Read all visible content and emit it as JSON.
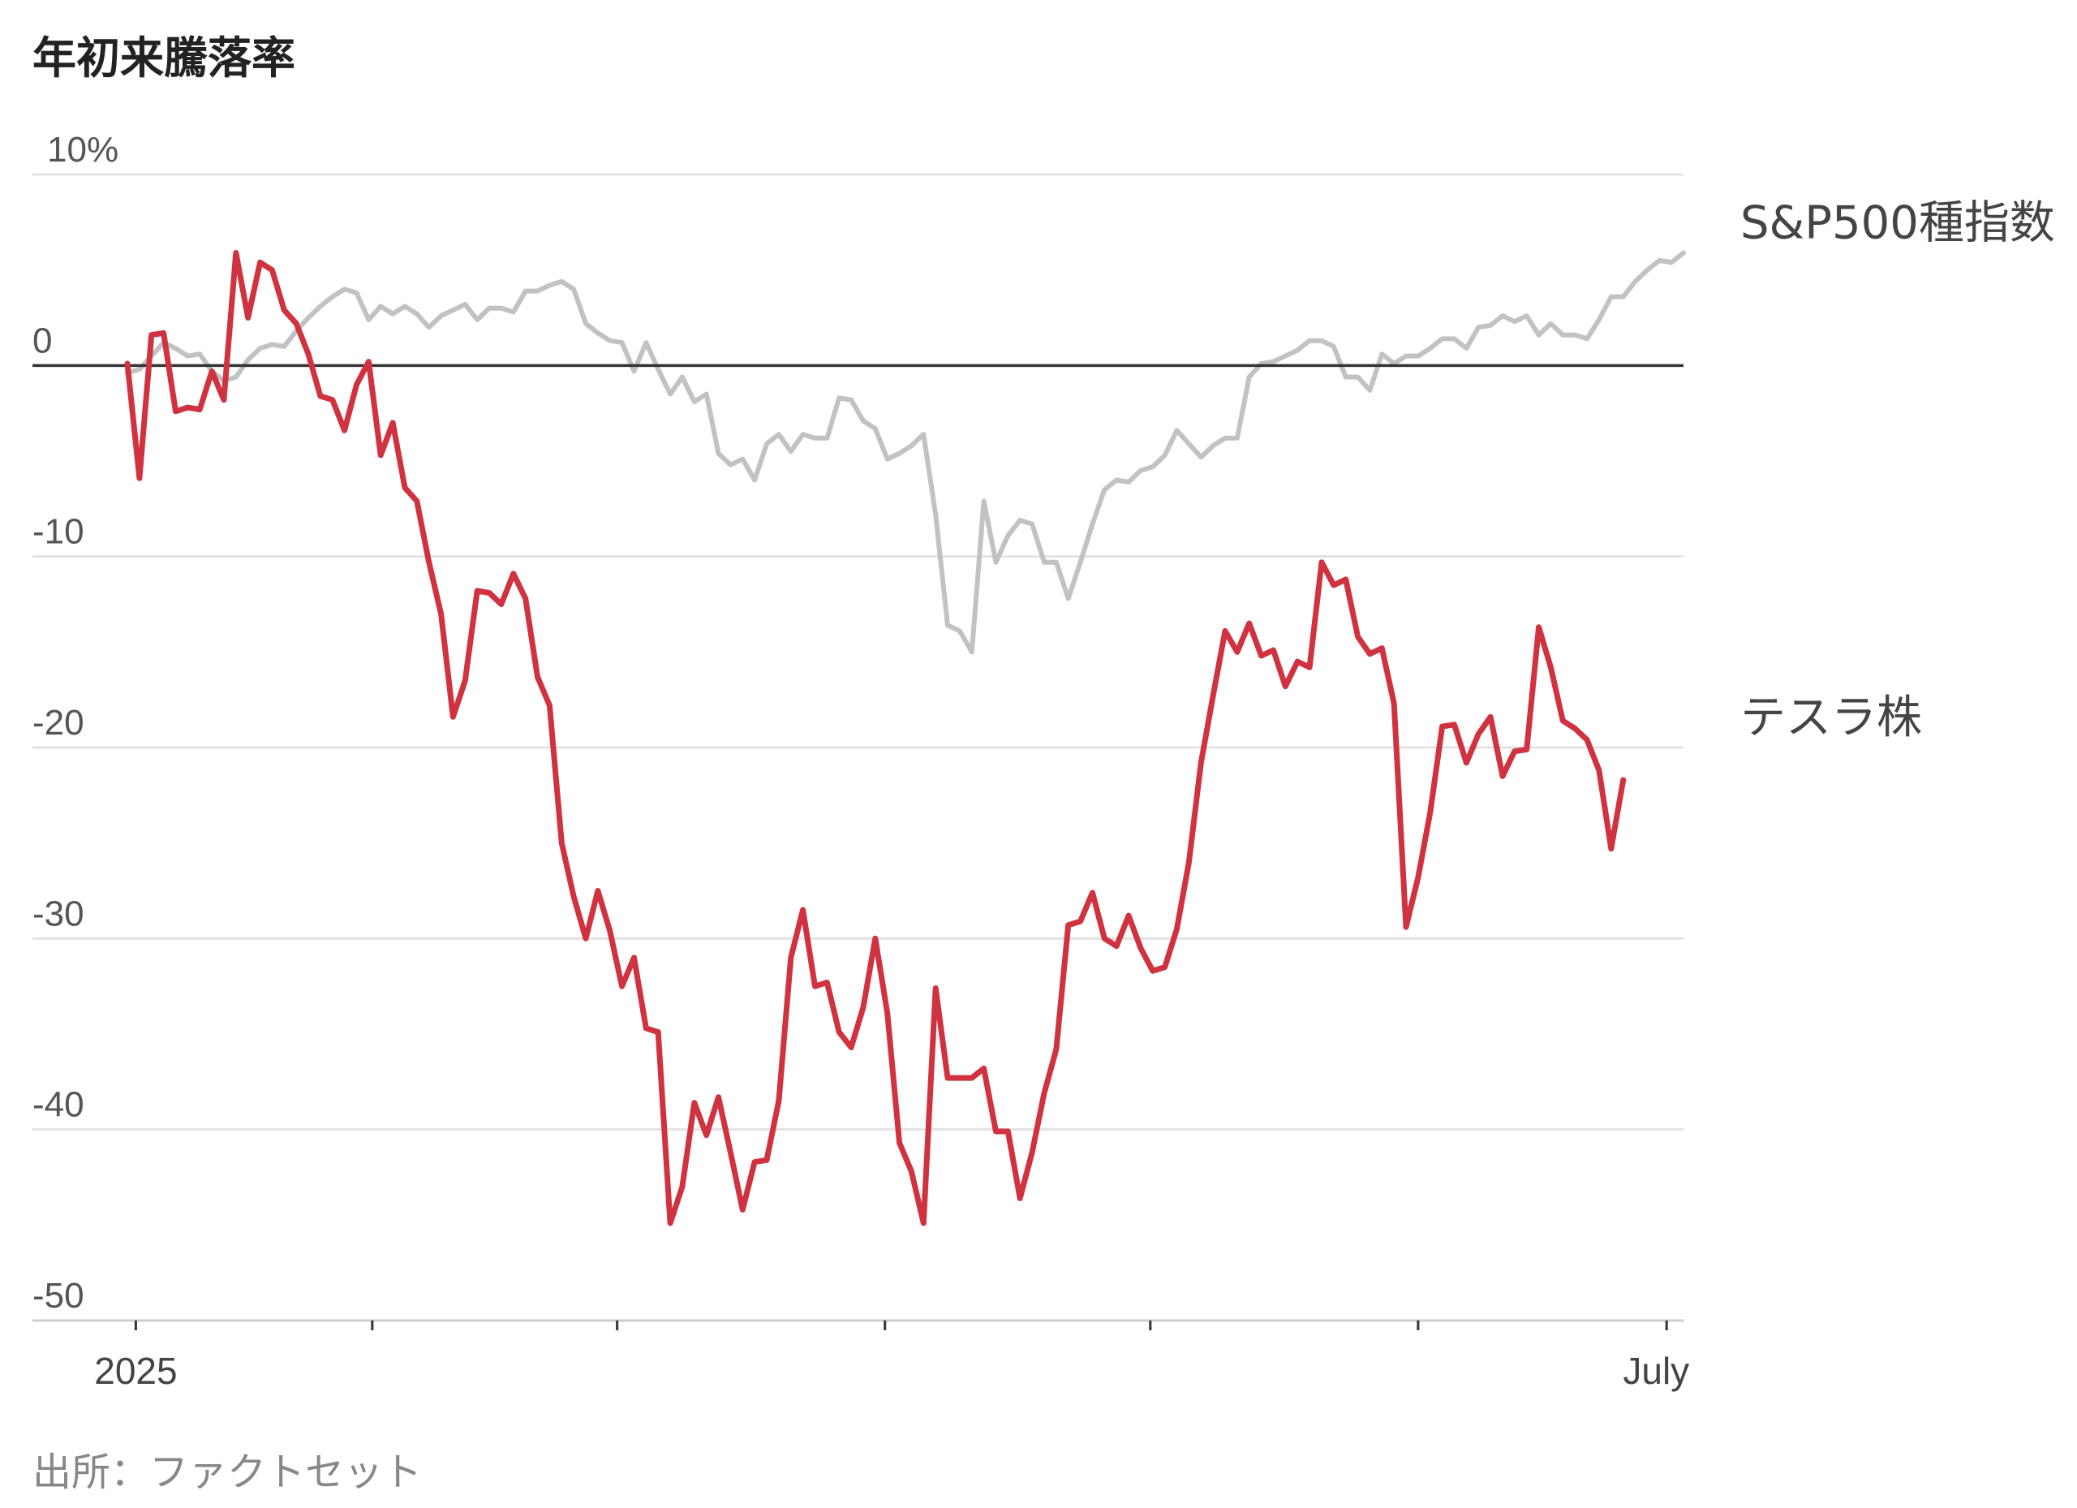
{
  "chart_data": {
    "type": "line",
    "title": "年初来騰落率",
    "source": "出所：ファクトセット",
    "ylim": [
      -50,
      10
    ],
    "yticks": [
      {
        "value": 10,
        "label": "10%"
      },
      {
        "value": 0,
        "label": "0"
      },
      {
        "value": -10,
        "label": "-10"
      },
      {
        "value": -20,
        "label": "-20"
      },
      {
        "value": -30,
        "label": "-30"
      },
      {
        "value": -40,
        "label": "-40"
      },
      {
        "value": -50,
        "label": "-50"
      }
    ],
    "xlim": [
      0,
      129
    ],
    "xticks": [
      {
        "value": 0.7,
        "label": "2025"
      },
      {
        "value": 20.3,
        "label": ""
      },
      {
        "value": 40.6,
        "label": ""
      },
      {
        "value": 62.8,
        "label": ""
      },
      {
        "value": 84.8,
        "label": ""
      },
      {
        "value": 107.0,
        "label": ""
      },
      {
        "value": 127.6,
        "label": "July"
      }
    ],
    "grid": true,
    "zero_line": true,
    "colors": {
      "tesla": "#d0323f",
      "sp500": "#c2c2c2",
      "grid": "#e3e3e3",
      "zero": "#333333",
      "axis": "#cccccc"
    },
    "series": [
      {
        "name": "S&P500種指数",
        "color": "#c2c2c2",
        "values": [
          -0.4,
          -0.2,
          0.5,
          1.2,
          0.9,
          0.5,
          0.6,
          -0.3,
          -0.8,
          -0.6,
          0.3,
          0.9,
          1.1,
          1.0,
          1.8,
          2.5,
          3.1,
          3.6,
          4.0,
          3.8,
          2.4,
          3.1,
          2.7,
          3.1,
          2.7,
          2.0,
          2.6,
          2.9,
          3.2,
          2.4,
          3.0,
          3.0,
          2.8,
          3.9,
          3.9,
          4.2,
          4.4,
          4.0,
          2.2,
          1.7,
          1.3,
          1.2,
          -0.3,
          1.2,
          -0.2,
          -1.5,
          -0.6,
          -1.9,
          -1.5,
          -4.6,
          -5.2,
          -4.9,
          -6.0,
          -4.1,
          -3.6,
          -4.5,
          -3.6,
          -3.8,
          -3.8,
          -1.7,
          -1.8,
          -2.9,
          -3.3,
          -4.9,
          -4.6,
          -4.2,
          -3.6,
          -7.8,
          -13.6,
          -13.9,
          -15.0,
          -7.1,
          -10.3,
          -8.9,
          -8.1,
          -8.3,
          -10.3,
          -10.3,
          -12.2,
          -10.3,
          -8.3,
          -6.5,
          -6.0,
          -6.1,
          -5.5,
          -5.3,
          -4.7,
          -3.4,
          -4.1,
          -4.8,
          -4.2,
          -3.8,
          -3.8,
          -0.6,
          0.1,
          0.2,
          0.5,
          0.8,
          1.3,
          1.3,
          1.0,
          -0.6,
          -0.6,
          -1.3,
          0.6,
          0.1,
          0.5,
          0.5,
          0.9,
          1.4,
          1.4,
          0.9,
          2.0,
          2.1,
          2.6,
          2.3,
          2.6,
          1.6,
          2.2,
          1.6,
          1.6,
          1.4,
          2.4,
          3.6,
          3.6,
          4.4,
          5.0,
          5.5,
          5.4,
          5.9
        ]
      },
      {
        "name": "テスラ株",
        "color": "#d0323f",
        "values": [
          0.1,
          -5.9,
          1.6,
          1.7,
          -2.4,
          -2.2,
          -2.3,
          -0.3,
          -1.8,
          5.9,
          2.5,
          5.4,
          5.0,
          2.9,
          2.2,
          0.6,
          -1.6,
          -1.8,
          -3.4,
          -1.0,
          0.2,
          -4.7,
          -3.0,
          -6.4,
          -7.1,
          -10.3,
          -13.0,
          -18.4,
          -16.5,
          -11.8,
          -11.9,
          -12.5,
          -10.9,
          -12.2,
          -16.3,
          -17.8,
          -25.0,
          -27.8,
          -30.0,
          -27.5,
          -29.6,
          -32.5,
          -31.0,
          -34.7,
          -34.9,
          -44.9,
          -43.0,
          -38.6,
          -40.3,
          -38.3,
          -41.2,
          -44.2,
          -41.7,
          -41.6,
          -38.5,
          -31.0,
          -28.5,
          -32.5,
          -32.3,
          -34.9,
          -35.7,
          -33.6,
          -30.0,
          -33.9,
          -40.7,
          -42.2,
          -44.9,
          -32.6,
          -37.3,
          -37.3,
          -37.3,
          -36.8,
          -40.1,
          -40.1,
          -43.6,
          -41.2,
          -38.1,
          -35.8,
          -29.3,
          -29.1,
          -27.6,
          -30.0,
          -30.4,
          -28.8,
          -30.5,
          -31.7,
          -31.5,
          -29.5,
          -26.0,
          -20.8,
          -17.3,
          -13.9,
          -15.0,
          -13.5,
          -15.2,
          -14.9,
          -16.8,
          -15.5,
          -15.8,
          -10.3,
          -11.5,
          -11.2,
          -14.2,
          -15.1,
          -14.8,
          -17.7,
          -29.4,
          -26.8,
          -23.4,
          -18.9,
          -18.8,
          -20.8,
          -19.3,
          -18.4,
          -21.5,
          -20.2,
          -20.1,
          -13.7,
          -15.8,
          -18.6,
          -19.0,
          -19.6,
          -21.2,
          -25.3,
          -21.7
        ]
      }
    ]
  }
}
